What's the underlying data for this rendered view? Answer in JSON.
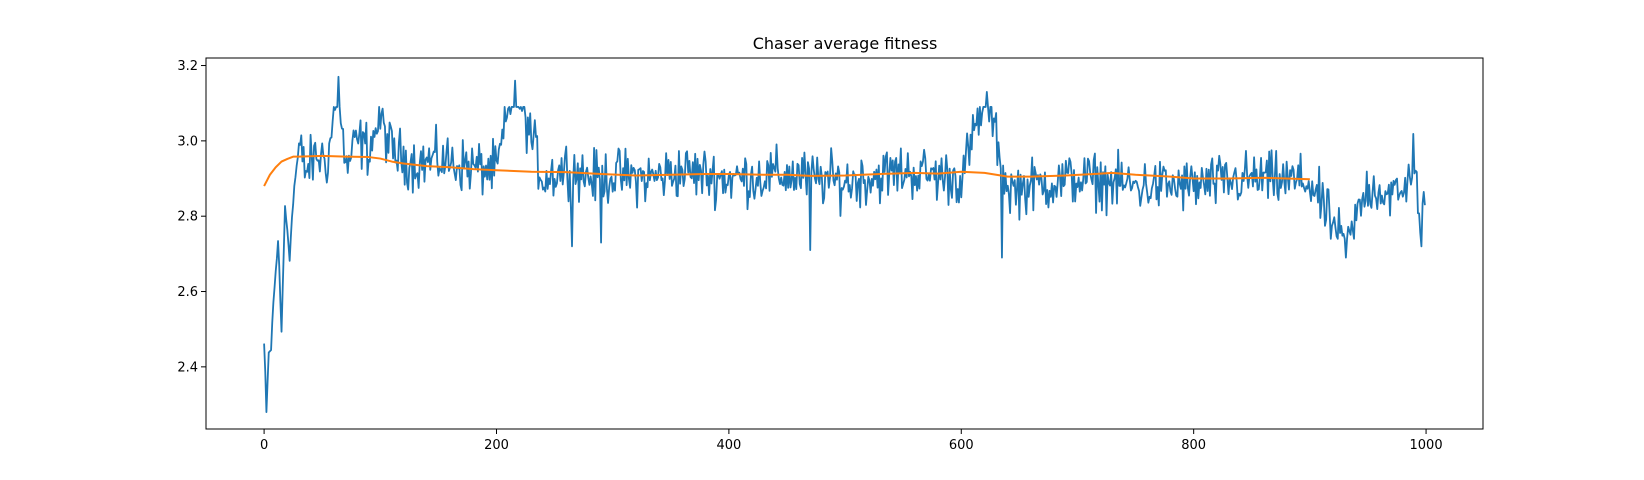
{
  "chart_data": {
    "type": "line",
    "title": "Chaser average fitness",
    "xlabel": "",
    "ylabel": "",
    "xlim": [
      -50,
      1049
    ],
    "ylim": [
      2.235,
      3.22
    ],
    "xticks": [
      0,
      200,
      400,
      600,
      800,
      1000
    ],
    "yticks": [
      2.4,
      2.6,
      2.8,
      3.0,
      3.2
    ],
    "xtick_labels": [
      "0",
      "200",
      "400",
      "600",
      "800",
      "1000"
    ],
    "ytick_labels": [
      "2.4",
      "2.6",
      "2.8",
      "3.0",
      "3.2"
    ],
    "grid": false,
    "legend": "none",
    "colors": {
      "series_raw": "#1f77b4",
      "series_smooth": "#ff7f0e",
      "axes": "#000000"
    },
    "series": [
      {
        "key": "raw",
        "x_range": [
          0,
          999
        ],
        "anchors": [
          [
            0,
            2.46
          ],
          [
            2,
            2.28
          ],
          [
            4,
            2.43
          ],
          [
            6,
            2.45
          ],
          [
            8,
            2.57
          ],
          [
            10,
            2.65
          ],
          [
            12,
            2.74
          ],
          [
            15,
            2.49
          ],
          [
            18,
            2.83
          ],
          [
            22,
            2.7
          ],
          [
            26,
            2.88
          ],
          [
            30,
            2.98
          ],
          [
            36,
            2.92
          ],
          [
            45,
            2.96
          ],
          [
            55,
            2.95
          ],
          [
            64,
            3.17
          ],
          [
            70,
            2.92
          ],
          [
            80,
            3.0
          ],
          [
            90,
            2.98
          ],
          [
            100,
            3.06
          ],
          [
            110,
            2.97
          ],
          [
            130,
            2.94
          ],
          [
            150,
            2.95
          ],
          [
            180,
            2.93
          ],
          [
            200,
            2.92
          ],
          [
            216,
            3.16
          ],
          [
            240,
            2.9
          ],
          [
            260,
            2.93
          ],
          [
            285,
            2.9
          ],
          [
            300,
            2.91
          ],
          [
            330,
            2.9
          ],
          [
            360,
            2.92
          ],
          [
            400,
            2.9
          ],
          [
            450,
            2.91
          ],
          [
            500,
            2.89
          ],
          [
            550,
            2.92
          ],
          [
            600,
            2.9
          ],
          [
            622,
            3.13
          ],
          [
            640,
            2.87
          ],
          [
            700,
            2.9
          ],
          [
            750,
            2.88
          ],
          [
            800,
            2.88
          ],
          [
            850,
            2.9
          ],
          [
            900,
            2.89
          ],
          [
            931,
            2.71
          ],
          [
            950,
            2.88
          ],
          [
            980,
            2.85
          ],
          [
            990,
            2.97
          ],
          [
            996,
            2.74
          ],
          [
            999,
            2.87
          ]
        ],
        "extremes": [
          [
            2,
            2.28
          ],
          [
            64,
            3.17
          ],
          [
            216,
            3.16
          ],
          [
            622,
            3.13
          ],
          [
            635,
            2.69
          ],
          [
            931,
            2.69
          ],
          [
            996,
            2.72
          ],
          [
            470,
            2.71
          ],
          [
            265,
            2.72
          ],
          [
            290,
            2.73
          ]
        ],
        "noise_amplitude_early": 0.03,
        "noise_amplitude": 0.075
      },
      {
        "key": "smooth",
        "points": [
          [
            0,
            2.88
          ],
          [
            5,
            2.91
          ],
          [
            10,
            2.93
          ],
          [
            15,
            2.945
          ],
          [
            20,
            2.952
          ],
          [
            25,
            2.958
          ],
          [
            30,
            2.958
          ],
          [
            50,
            2.96
          ],
          [
            70,
            2.958
          ],
          [
            90,
            2.957
          ],
          [
            100,
            2.953
          ],
          [
            110,
            2.945
          ],
          [
            120,
            2.94
          ],
          [
            140,
            2.933
          ],
          [
            160,
            2.93
          ],
          [
            180,
            2.925
          ],
          [
            200,
            2.922
          ],
          [
            230,
            2.918
          ],
          [
            260,
            2.917
          ],
          [
            290,
            2.912
          ],
          [
            320,
            2.908
          ],
          [
            350,
            2.91
          ],
          [
            380,
            2.912
          ],
          [
            400,
            2.912
          ],
          [
            430,
            2.91
          ],
          [
            450,
            2.91
          ],
          [
            470,
            2.907
          ],
          [
            500,
            2.908
          ],
          [
            530,
            2.912
          ],
          [
            560,
            2.915
          ],
          [
            580,
            2.913
          ],
          [
            600,
            2.918
          ],
          [
            620,
            2.915
          ],
          [
            640,
            2.905
          ],
          [
            660,
            2.905
          ],
          [
            690,
            2.908
          ],
          [
            720,
            2.913
          ],
          [
            730,
            2.915
          ],
          [
            750,
            2.91
          ],
          [
            780,
            2.905
          ],
          [
            800,
            2.9
          ],
          [
            830,
            2.9
          ],
          [
            860,
            2.902
          ],
          [
            880,
            2.9
          ],
          [
            900,
            2.898
          ]
        ]
      }
    ]
  }
}
